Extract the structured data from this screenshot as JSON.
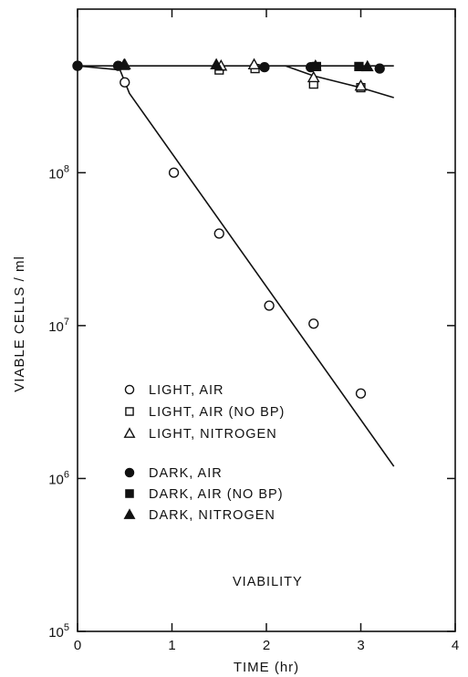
{
  "chart_data": {
    "type": "scatter",
    "xlabel": "TIME (hr)",
    "ylabel": "VIABLE CELLS / ml",
    "xlim": [
      0,
      4
    ],
    "ylim_log10": [
      5,
      9.07
    ],
    "y_scale": "log",
    "x_ticks": [
      {
        "value": 0,
        "label": "0"
      },
      {
        "value": 1,
        "label": "1"
      },
      {
        "value": 2,
        "label": "2"
      },
      {
        "value": 3,
        "label": "3"
      },
      {
        "value": 4,
        "label": "4"
      }
    ],
    "y_ticks": [
      {
        "value": 100000,
        "base": "10",
        "exp": "5"
      },
      {
        "value": 1000000,
        "base": "10",
        "exp": "6"
      },
      {
        "value": 10000000,
        "base": "10",
        "exp": "7"
      },
      {
        "value": 100000000,
        "base": "10",
        "exp": "8"
      }
    ],
    "annotation": "VIABILITY",
    "legend_position": "center-left",
    "series": [
      {
        "name": "LIGHT, AIR",
        "marker": "circle",
        "filled": false,
        "points": [
          [
            0,
            500000000
          ],
          [
            0.5,
            390000000
          ],
          [
            1.02,
            100000000
          ],
          [
            1.5,
            40000000
          ],
          [
            2.03,
            13500000
          ],
          [
            2.5,
            10300000
          ],
          [
            3.0,
            3600000
          ]
        ]
      },
      {
        "name": "LIGHT, AIR (NO BP)",
        "marker": "square",
        "filled": false,
        "points": [
          [
            1.5,
            470000000
          ],
          [
            1.88,
            480000000
          ],
          [
            2.5,
            380000000
          ],
          [
            3.0,
            360000000
          ]
        ]
      },
      {
        "name": "LIGHT, NITROGEN",
        "marker": "triangle",
        "filled": false,
        "points": [
          [
            0.5,
            510000000
          ],
          [
            1.52,
            500000000
          ],
          [
            1.87,
            510000000
          ],
          [
            2.5,
            420000000
          ],
          [
            3.0,
            370000000
          ]
        ]
      },
      {
        "name": "DARK, AIR",
        "marker": "circle",
        "filled": true,
        "points": [
          [
            0,
            500000000
          ],
          [
            0.43,
            500000000
          ],
          [
            1.98,
            490000000
          ],
          [
            2.47,
            490000000
          ],
          [
            3.2,
            480000000
          ]
        ]
      },
      {
        "name": "DARK, AIR (NO BP)",
        "marker": "square",
        "filled": true,
        "points": [
          [
            2.53,
            495000000
          ],
          [
            2.98,
            495000000
          ]
        ]
      },
      {
        "name": "DARK, NITROGEN",
        "marker": "triangle",
        "filled": true,
        "points": [
          [
            0.49,
            505000000
          ],
          [
            1.47,
            510000000
          ],
          [
            2.52,
            500000000
          ],
          [
            3.07,
            495000000
          ]
        ]
      }
    ],
    "curves": [
      {
        "points": [
          [
            0,
            500000000
          ],
          [
            0.45,
            470000000
          ],
          [
            0.55,
            330000000
          ],
          [
            3.35,
            1200000
          ]
        ]
      },
      {
        "points": [
          [
            0,
            500000000
          ],
          [
            3.35,
            500000000
          ]
        ]
      },
      {
        "points": [
          [
            2.2,
            500000000
          ],
          [
            2.5,
            430000000
          ],
          [
            3.0,
            360000000
          ],
          [
            3.35,
            310000000
          ]
        ]
      }
    ]
  }
}
